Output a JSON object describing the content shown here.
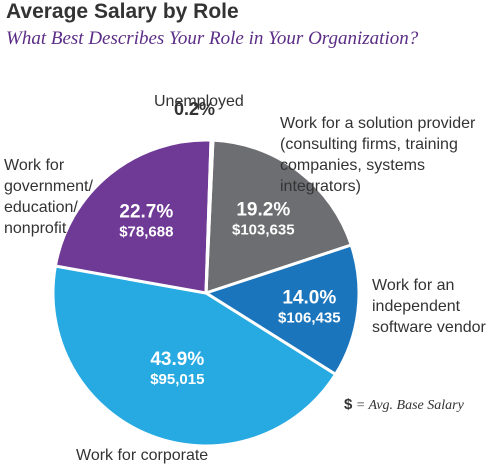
{
  "title": "Average Salary by Role",
  "subtitle": "What Best Describes Your Role in Your Organization?",
  "footnote": {
    "symbol": "$",
    "text": "= Avg. Base Salary"
  },
  "chart_data": {
    "type": "pie",
    "title": "Average Salary by Role",
    "subtitle": "What Best Describes Your Role in Your Organization?",
    "slices": [
      {
        "label": "Work for a solution provider (consulting firms, training companies, systems integrators)",
        "percent": 19.2,
        "percent_label": "19.2%",
        "salary_label": "$103,635",
        "color": "#6d6e71"
      },
      {
        "label": "Work for an independent software vendor",
        "percent": 14.0,
        "percent_label": "14.0%",
        "salary_label": "$106,435",
        "color": "#1b75bc"
      },
      {
        "label": "Work for corporate IT/IS",
        "percent": 43.9,
        "percent_label": "43.9%",
        "salary_label": "$95,015",
        "color": "#27aae1"
      },
      {
        "label": "Work for government/ education/ nonprofit",
        "percent": 22.7,
        "percent_label": "22.7%",
        "salary_label": "$78,688",
        "color": "#6f3996"
      },
      {
        "label": "Unemployed",
        "percent": 0.2,
        "percent_label": "0.2%",
        "salary_label": "",
        "color": "#e0953c"
      }
    ]
  }
}
